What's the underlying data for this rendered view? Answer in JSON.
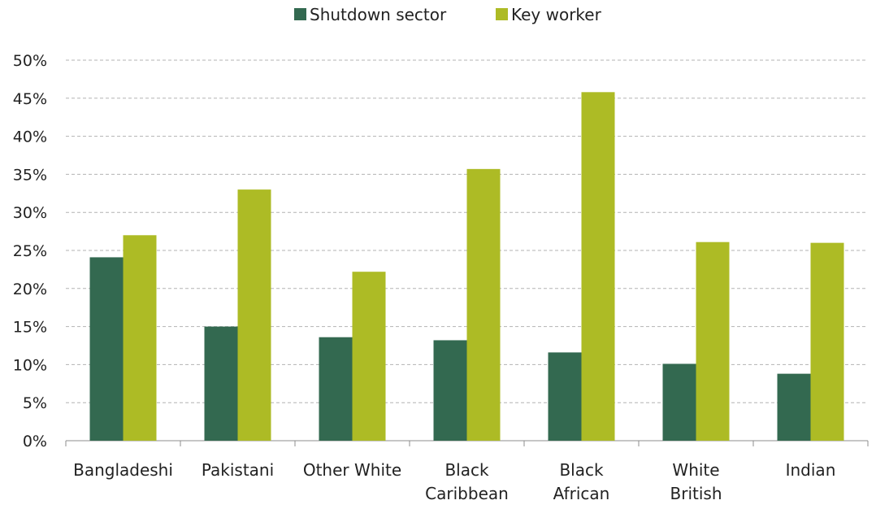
{
  "chart_data": {
    "type": "bar",
    "categories": [
      [
        "Bangladeshi"
      ],
      [
        "Pakistani"
      ],
      [
        "Other White"
      ],
      [
        "Black",
        "Caribbean"
      ],
      [
        "Black",
        "African"
      ],
      [
        "White",
        "British"
      ],
      [
        "Indian"
      ]
    ],
    "series": [
      {
        "name": "Shutdown sector",
        "color": "#336950",
        "values": [
          24.1,
          15.0,
          13.6,
          13.2,
          11.6,
          10.1,
          8.8
        ]
      },
      {
        "name": "Key worker",
        "color": "#adbb25",
        "values": [
          27.0,
          33.0,
          22.2,
          35.7,
          45.8,
          26.1,
          26.0
        ]
      }
    ],
    "yticks": [
      "0%",
      "5%",
      "10%",
      "15%",
      "20%",
      "25%",
      "30%",
      "35%",
      "40%",
      "45%",
      "50%"
    ],
    "ylim": [
      0,
      50
    ],
    "grid": true,
    "legend_position": "top-center",
    "title": "",
    "xlabel": "",
    "ylabel": ""
  }
}
